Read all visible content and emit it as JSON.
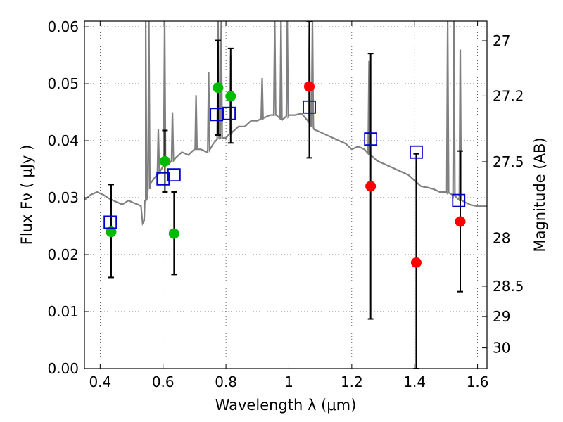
{
  "chart_data": {
    "type": "scatter",
    "xlabel": "Wavelength  λ (μm)",
    "ylabel": "Flux  Fν  ( μJy )",
    "ylabel_right": "Magnitude (AB)",
    "xlim": [
      0.35,
      1.63
    ],
    "ylim": [
      0.0,
      0.061
    ],
    "grid": true,
    "x_ticks": [
      {
        "v": 0.4,
        "label": "0.4"
      },
      {
        "v": 0.6,
        "label": "0.6"
      },
      {
        "v": 0.8,
        "label": "0.8"
      },
      {
        "v": 1.0,
        "label": "1"
      },
      {
        "v": 1.2,
        "label": "1.2"
      },
      {
        "v": 1.4,
        "label": "1.4"
      },
      {
        "v": 1.6,
        "label": "1.6"
      }
    ],
    "y_ticks": [
      {
        "v": 0.0,
        "label": "0.00"
      },
      {
        "v": 0.01,
        "label": "0.01"
      },
      {
        "v": 0.02,
        "label": "0.02"
      },
      {
        "v": 0.03,
        "label": "0.03"
      },
      {
        "v": 0.04,
        "label": "0.04"
      },
      {
        "v": 0.05,
        "label": "0.05"
      },
      {
        "v": 0.06,
        "label": "0.06"
      }
    ],
    "right_ticks": [
      {
        "mag": 27,
        "label": "27"
      },
      {
        "mag": 27.2,
        "label": "27.2"
      },
      {
        "mag": 27.5,
        "label": "27.5"
      },
      {
        "mag": 28,
        "label": "28"
      },
      {
        "mag": 28.5,
        "label": "28.5"
      },
      {
        "mag": 29,
        "label": "29"
      },
      {
        "mag": 30,
        "label": "30"
      }
    ],
    "model_spectrum": {
      "color": "#808080",
      "x": [
        0.35,
        0.37,
        0.39,
        0.41,
        0.43,
        0.45,
        0.47,
        0.49,
        0.51,
        0.52,
        0.53,
        0.535,
        0.54,
        0.545,
        0.55,
        0.56,
        0.58,
        0.6,
        0.62,
        0.64,
        0.66,
        0.68,
        0.7,
        0.72,
        0.74,
        0.76,
        0.78,
        0.8,
        0.82,
        0.84,
        0.86,
        0.88,
        0.9,
        0.92,
        0.94,
        0.96,
        0.98,
        1.0,
        1.02,
        1.04,
        1.06,
        1.08,
        1.1,
        1.12,
        1.14,
        1.16,
        1.18,
        1.2,
        1.22,
        1.24,
        1.26,
        1.28,
        1.3,
        1.32,
        1.34,
        1.36,
        1.38,
        1.4,
        1.42,
        1.44,
        1.46,
        1.48,
        1.5,
        1.52,
        1.54,
        1.56,
        1.58,
        1.6,
        1.63
      ],
      "y": [
        0.0296,
        0.0305,
        0.031,
        0.0305,
        0.0298,
        0.0293,
        0.0288,
        0.0295,
        0.029,
        0.0288,
        0.0285,
        0.0255,
        0.026,
        0.0295,
        0.0305,
        0.0325,
        0.034,
        0.0355,
        0.036,
        0.037,
        0.038,
        0.0375,
        0.0385,
        0.0385,
        0.038,
        0.0395,
        0.0405,
        0.0405,
        0.0415,
        0.0425,
        0.0425,
        0.0435,
        0.0435,
        0.044,
        0.0445,
        0.0445,
        0.0437,
        0.0445,
        0.0445,
        0.0448,
        0.0435,
        0.042,
        0.0415,
        0.041,
        0.0405,
        0.04,
        0.0395,
        0.0385,
        0.039,
        0.0385,
        0.0375,
        0.0365,
        0.036,
        0.0355,
        0.035,
        0.0345,
        0.034,
        0.033,
        0.032,
        0.0318,
        0.0315,
        0.031,
        0.031,
        0.0305,
        0.0297,
        0.0292,
        0.0287,
        0.0285,
        0.0285
      ]
    },
    "emission_lines": [
      {
        "x": 0.545,
        "top": 0.061
      },
      {
        "x": 0.555,
        "top": 0.061
      },
      {
        "x": 0.585,
        "top": 0.042
      },
      {
        "x": 0.605,
        "top": 0.061
      },
      {
        "x": 0.63,
        "top": 0.045
      },
      {
        "x": 0.705,
        "top": 0.048
      },
      {
        "x": 0.745,
        "top": 0.052
      },
      {
        "x": 0.775,
        "top": 0.061
      },
      {
        "x": 0.785,
        "top": 0.061
      },
      {
        "x": 0.815,
        "top": 0.055
      },
      {
        "x": 0.915,
        "top": 0.051
      },
      {
        "x": 0.955,
        "top": 0.061
      },
      {
        "x": 0.975,
        "top": 0.061
      },
      {
        "x": 0.995,
        "top": 0.061
      },
      {
        "x": 1.065,
        "top": 0.061
      },
      {
        "x": 1.075,
        "top": 0.061
      },
      {
        "x": 1.255,
        "top": 0.054
      },
      {
        "x": 1.505,
        "top": 0.061
      },
      {
        "x": 1.525,
        "top": 0.061
      },
      {
        "x": 1.545,
        "top": 0.056
      }
    ],
    "observed_points": [
      {
        "x": 0.435,
        "y": 0.024,
        "yerr_low": 0.016,
        "yerr_high": 0.0323,
        "color": "#00bb00"
      },
      {
        "x": 0.606,
        "y": 0.0364,
        "yerr_low": 0.031,
        "yerr_high": 0.0418,
        "color": "#00bb00"
      },
      {
        "x": 0.635,
        "y": 0.0237,
        "yerr_low": 0.0165,
        "yerr_high": 0.031,
        "color": "#00bb00"
      },
      {
        "x": 0.775,
        "y": 0.0493,
        "yerr_low": 0.041,
        "yerr_high": 0.0576,
        "color": "#00bb00"
      },
      {
        "x": 0.815,
        "y": 0.0478,
        "yerr_low": 0.0396,
        "yerr_high": 0.0562,
        "color": "#00bb00"
      },
      {
        "x": 1.065,
        "y": 0.0495,
        "yerr_low": 0.037,
        "yerr_high": 0.061,
        "color": "#ff0000"
      },
      {
        "x": 1.26,
        "y": 0.032,
        "yerr_low": 0.0087,
        "yerr_high": 0.0553,
        "color": "#ff0000"
      },
      {
        "x": 1.405,
        "y": 0.0186,
        "yerr_low": 0.0,
        "yerr_high": 0.0377,
        "color": "#ff0000"
      },
      {
        "x": 1.545,
        "y": 0.0258,
        "yerr_low": 0.0135,
        "yerr_high": 0.0382,
        "color": "#ff0000"
      }
    ],
    "model_photometry": {
      "color": "#0000cc",
      "x": [
        0.432,
        0.6,
        0.635,
        0.77,
        0.81,
        1.065,
        1.26,
        1.405,
        1.54
      ],
      "y": [
        0.0257,
        0.0333,
        0.034,
        0.0446,
        0.0448,
        0.0459,
        0.0403,
        0.038,
        0.0295
      ]
    }
  }
}
